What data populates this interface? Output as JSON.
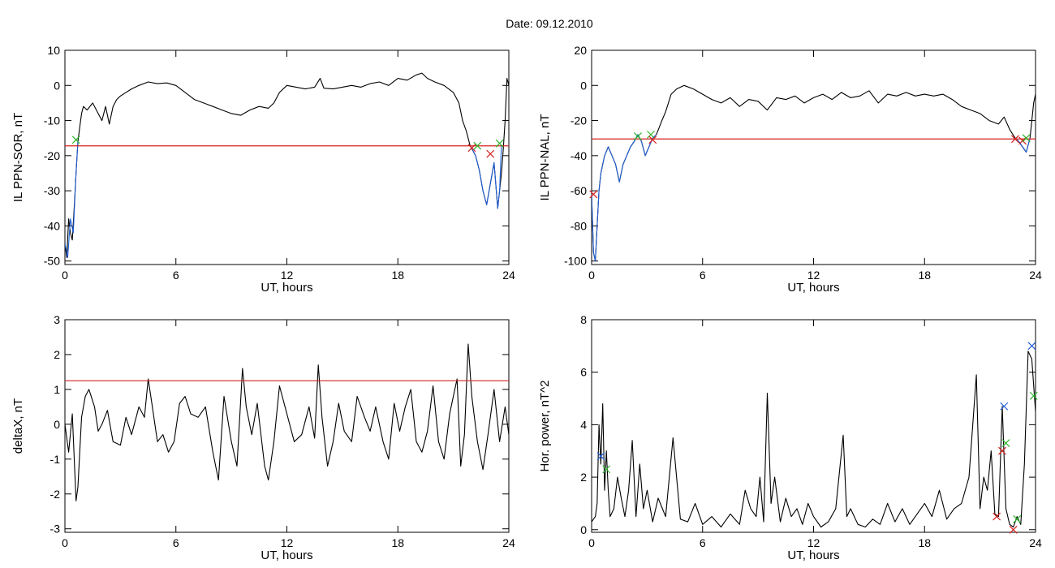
{
  "header": {
    "date_label": "Date:  09.12.2010"
  },
  "chart_data": [
    {
      "type": "line",
      "ylabel": "IL PPN-SOR, nT",
      "xlabel": "UT, hours",
      "xlim": [
        0,
        24
      ],
      "ylim": [
        -51,
        10
      ],
      "xticks": [
        "0",
        "6",
        "12",
        "18",
        "24"
      ],
      "yticks": [
        "10",
        "0",
        "-10",
        "-20",
        "-30",
        "-40",
        "-50"
      ],
      "threshold": -17.2,
      "series": [
        {
          "color": "#000000",
          "x": [
            0,
            0.1,
            0.2,
            0.3,
            0.4,
            0.5,
            0.6,
            0.7,
            0.8,
            0.9,
            1.0,
            1.2,
            1.5,
            1.8,
            2.0,
            2.2,
            2.4,
            2.6,
            2.8,
            3.0,
            3.3,
            3.6,
            4.0,
            4.5,
            5.0,
            5.5,
            6.0,
            6.5,
            7.0,
            7.5,
            8.0,
            8.5,
            9.0,
            9.5,
            10.0,
            10.5,
            11.0,
            11.3,
            11.6,
            12.0,
            12.5,
            13.0,
            13.5,
            13.8,
            14.0,
            14.5,
            15.0,
            15.5,
            16.0,
            16.5,
            17.0,
            17.5,
            18.0,
            18.5,
            19.0,
            19.3,
            19.6,
            20.0,
            20.5,
            21.0,
            21.3,
            21.5,
            21.7,
            21.9,
            22.0,
            22.2,
            22.4,
            22.6,
            22.8,
            23.0,
            23.2,
            23.4,
            23.5,
            23.6,
            23.7,
            23.8,
            23.9,
            24.0
          ],
          "values": [
            -45,
            -49,
            -38,
            -42,
            -44,
            -35,
            -25,
            -16,
            -12,
            -8,
            -6,
            -7,
            -5,
            -8,
            -10,
            -6,
            -11,
            -6,
            -4,
            -3,
            -2,
            -1,
            0,
            1,
            0.5,
            0.7,
            0,
            -2,
            -4,
            -5,
            -6,
            -7,
            -8,
            -8.5,
            -7,
            -6,
            -6.5,
            -5,
            -2,
            0,
            -0.5,
            -1,
            -0.5,
            2,
            -0.8,
            -1,
            -0.5,
            0,
            -0.5,
            0.5,
            1,
            0,
            2,
            1.5,
            3,
            3.5,
            2,
            1,
            0,
            -2,
            -5,
            -10,
            -13,
            -17,
            -18,
            -20,
            -24,
            -30,
            -34,
            -28,
            -22,
            -35,
            -30,
            -25,
            -18,
            -10,
            2,
            0
          ]
        },
        {
          "color": "#1f5fd6",
          "x": [
            0,
            0.15,
            0.3,
            0.45,
            0.6,
            0.7
          ],
          "values": [
            -45,
            -49,
            -38,
            -42,
            -25,
            -16
          ]
        },
        {
          "color": "#1f5fd6",
          "x": [
            21.9,
            22.0,
            22.2,
            22.4,
            22.6,
            22.8,
            23.0,
            23.2,
            23.4,
            23.5,
            23.6
          ],
          "values": [
            -17,
            -18,
            -20,
            -24,
            -30,
            -34,
            -28,
            -22,
            -35,
            -30,
            -17
          ]
        }
      ],
      "markers": [
        {
          "x": 0.6,
          "y": -15.5,
          "color": "#2db52d"
        },
        {
          "x": 22.0,
          "y": -17.8,
          "color": "#d62020"
        },
        {
          "x": 22.3,
          "y": -17.2,
          "color": "#2db52d"
        },
        {
          "x": 23.0,
          "y": -19.5,
          "color": "#d62020"
        },
        {
          "x": 23.5,
          "y": -16.5,
          "color": "#2db52d"
        }
      ]
    },
    {
      "type": "line",
      "ylabel": "IL PPN-NAL, nT",
      "xlabel": "UT, hours",
      "xlim": [
        0,
        24
      ],
      "ylim": [
        -102,
        20
      ],
      "xticks": [
        "0",
        "6",
        "12",
        "18",
        "24"
      ],
      "yticks": [
        "20",
        "0",
        "-20",
        "-40",
        "-60",
        "-80",
        "-100"
      ],
      "threshold": -30.5,
      "series": [
        {
          "color": "#000000",
          "x": [
            0,
            0.1,
            0.2,
            0.3,
            0.4,
            0.5,
            0.7,
            0.9,
            1.1,
            1.3,
            1.5,
            1.7,
            1.9,
            2.1,
            2.3,
            2.5,
            2.7,
            2.9,
            3.1,
            3.3,
            3.5,
            3.8,
            4.0,
            4.3,
            4.6,
            5.0,
            5.5,
            6.0,
            6.5,
            7.0,
            7.5,
            8.0,
            8.5,
            9.0,
            9.5,
            10.0,
            10.5,
            11.0,
            11.5,
            12.0,
            12.5,
            13.0,
            13.5,
            14.0,
            14.5,
            15.0,
            15.5,
            16.0,
            16.5,
            17.0,
            17.5,
            18.0,
            18.5,
            19.0,
            19.5,
            20.0,
            20.5,
            21.0,
            21.5,
            22.0,
            22.3,
            22.6,
            22.9,
            23.1,
            23.3,
            23.5,
            23.7,
            23.9,
            24.0
          ],
          "values": [
            -62,
            -95,
            -100,
            -80,
            -60,
            -50,
            -40,
            -35,
            -40,
            -45,
            -55,
            -45,
            -40,
            -35,
            -32,
            -28,
            -32,
            -40,
            -35,
            -30,
            -28,
            -20,
            -15,
            -5,
            -2,
            0,
            -2,
            -5,
            -8,
            -10,
            -7,
            -12,
            -8,
            -9,
            -14,
            -7,
            -8,
            -6,
            -10,
            -7,
            -5,
            -8,
            -4,
            -7,
            -6,
            -3,
            -10,
            -5,
            -6,
            -4,
            -6,
            -5,
            -6,
            -5,
            -8,
            -12,
            -14,
            -16,
            -20,
            -22,
            -18,
            -25,
            -30,
            -32,
            -35,
            -38,
            -30,
            -10,
            -5
          ]
        },
        {
          "color": "#1f5fd6",
          "x": [
            0,
            0.1,
            0.2,
            0.3,
            0.4,
            0.5,
            0.7,
            0.9,
            1.1,
            1.3,
            1.5,
            1.7,
            1.9,
            2.1,
            2.3,
            2.5,
            2.7,
            2.9,
            3.1,
            3.3,
            3.5
          ],
          "values": [
            -62,
            -95,
            -100,
            -80,
            -60,
            -50,
            -40,
            -35,
            -40,
            -45,
            -55,
            -45,
            -40,
            -35,
            -32,
            -28,
            -32,
            -40,
            -35,
            -30,
            -28
          ]
        },
        {
          "color": "#1f5fd6",
          "x": [
            22.9,
            23.1,
            23.3,
            23.5,
            23.7
          ],
          "values": [
            -30,
            -32,
            -35,
            -38,
            -30
          ]
        }
      ],
      "markers": [
        {
          "x": 0.1,
          "y": -62,
          "color": "#d62020"
        },
        {
          "x": 2.5,
          "y": -29,
          "color": "#2db52d"
        },
        {
          "x": 3.2,
          "y": -28,
          "color": "#2db52d"
        },
        {
          "x": 3.3,
          "y": -31,
          "color": "#d62020"
        },
        {
          "x": 22.9,
          "y": -30.5,
          "color": "#d62020"
        },
        {
          "x": 23.3,
          "y": -31.5,
          "color": "#d62020"
        },
        {
          "x": 23.5,
          "y": -30,
          "color": "#2db52d"
        }
      ]
    },
    {
      "type": "line",
      "ylabel": "deltaX, nT",
      "xlabel": "UT, hours",
      "xlim": [
        0,
        24
      ],
      "ylim": [
        -3.1,
        3
      ],
      "xticks": [
        "0",
        "6",
        "12",
        "18",
        "24"
      ],
      "yticks": [
        "3",
        "2",
        "1",
        "0",
        "-1",
        "-2",
        "-3"
      ],
      "threshold": 1.25,
      "series": [
        {
          "color": "#000000",
          "x": [
            0,
            0.2,
            0.4,
            0.6,
            0.7,
            0.9,
            1.1,
            1.3,
            1.6,
            1.8,
            2.0,
            2.3,
            2.6,
            3.0,
            3.3,
            3.6,
            4.0,
            4.3,
            4.5,
            4.7,
            5.0,
            5.3,
            5.6,
            5.9,
            6.2,
            6.5,
            6.8,
            7.2,
            7.6,
            8.0,
            8.3,
            8.6,
            9.0,
            9.3,
            9.6,
            9.8,
            10.1,
            10.4,
            10.8,
            11.0,
            11.3,
            11.6,
            12.0,
            12.4,
            12.8,
            13.2,
            13.5,
            13.7,
            13.9,
            14.2,
            14.5,
            14.8,
            15.1,
            15.5,
            15.8,
            16.2,
            16.5,
            16.8,
            17.2,
            17.5,
            17.8,
            18.1,
            18.4,
            18.7,
            19.0,
            19.3,
            19.6,
            19.9,
            20.2,
            20.5,
            20.8,
            21.0,
            21.2,
            21.4,
            21.6,
            21.8,
            22.0,
            22.3,
            22.6,
            22.9,
            23.2,
            23.5,
            23.8,
            24.0
          ],
          "values": [
            0,
            -0.8,
            0.3,
            -2.2,
            -1.8,
            0.2,
            0.8,
            1.0,
            0.5,
            -0.2,
            0,
            0.4,
            -0.5,
            -0.6,
            0.2,
            -0.3,
            0.5,
            0.2,
            1.3,
            0.6,
            -0.5,
            -0.3,
            -0.8,
            -0.5,
            0.6,
            0.8,
            0.3,
            0.2,
            0.5,
            -0.8,
            -1.6,
            0.8,
            -0.5,
            -1.2,
            1.6,
            0.5,
            -0.3,
            0.6,
            -1.2,
            -1.6,
            -0.5,
            1.1,
            0.3,
            -0.5,
            -0.3,
            0.5,
            -0.4,
            1.7,
            0.2,
            -1.2,
            -0.5,
            0.6,
            -0.2,
            -0.5,
            0.8,
            0.2,
            -0.2,
            0.5,
            -0.5,
            -1.0,
            0.6,
            -0.2,
            0.5,
            1.0,
            -0.5,
            -0.8,
            -0.2,
            1.1,
            -0.5,
            -1.0,
            0.3,
            0.8,
            1.3,
            -1.2,
            -0.3,
            2.3,
            0.8,
            -0.5,
            -1.3,
            -0.2,
            1.0,
            -0.5,
            0.5,
            -0.3
          ]
        }
      ],
      "markers": []
    },
    {
      "type": "line",
      "ylabel": "Hor. power, nT^2",
      "xlabel": "UT, hours",
      "xlim": [
        0,
        24
      ],
      "ylim": [
        -0.1,
        8
      ],
      "xticks": [
        "0",
        "6",
        "12",
        "18",
        "24"
      ],
      "yticks": [
        "8",
        "6",
        "4",
        "2",
        "0"
      ],
      "series": [
        {
          "color": "#000000",
          "x": [
            0,
            0.2,
            0.3,
            0.4,
            0.5,
            0.6,
            0.7,
            0.8,
            0.9,
            1.0,
            1.2,
            1.4,
            1.6,
            1.8,
            2.0,
            2.2,
            2.4,
            2.6,
            2.8,
            3.0,
            3.3,
            3.6,
            4.0,
            4.4,
            4.8,
            5.2,
            5.6,
            6.0,
            6.5,
            7.0,
            7.5,
            8.0,
            8.3,
            8.6,
            8.9,
            9.1,
            9.3,
            9.5,
            9.7,
            9.9,
            10.2,
            10.5,
            10.8,
            11.1,
            11.4,
            11.7,
            12.0,
            12.4,
            12.8,
            13.2,
            13.6,
            13.8,
            14.0,
            14.4,
            14.8,
            15.2,
            15.6,
            16.0,
            16.4,
            16.8,
            17.2,
            17.6,
            18.0,
            18.4,
            18.8,
            19.2,
            19.6,
            20.0,
            20.4,
            20.8,
            21.0,
            21.2,
            21.4,
            21.6,
            21.8,
            22.0,
            22.2,
            22.4,
            22.6,
            22.8,
            23.0,
            23.2,
            23.4,
            23.6,
            23.8,
            24.0
          ],
          "values": [
            0.3,
            0.5,
            1.0,
            4.0,
            2.5,
            4.8,
            1.5,
            3.0,
            1.5,
            0.5,
            0.8,
            2.0,
            1.2,
            0.5,
            1.5,
            3.4,
            0.5,
            2.5,
            0.8,
            1.5,
            0.3,
            1.2,
            0.5,
            3.5,
            0.4,
            0.3,
            1.0,
            0.2,
            0.5,
            0.1,
            0.6,
            0.2,
            1.5,
            0.8,
            0.5,
            2.0,
            0.3,
            5.2,
            1.0,
            2.0,
            0.3,
            1.2,
            0.5,
            0.8,
            0.2,
            1.0,
            0.5,
            0.1,
            0.3,
            0.8,
            3.6,
            0.5,
            0.8,
            0.2,
            0.1,
            0.4,
            0.2,
            1.0,
            0.3,
            0.8,
            0.2,
            0.6,
            1.0,
            0.5,
            1.5,
            0.4,
            0.8,
            1.0,
            2.0,
            5.9,
            0.8,
            2.0,
            1.5,
            3.0,
            0.6,
            0.5,
            4.7,
            0.8,
            0.2,
            0.1,
            0.5,
            0.2,
            2.5,
            6.8,
            6.5,
            4.5
          ]
        }
      ],
      "markers": [
        {
          "x": 0.5,
          "y": 2.8,
          "color": "#1f5fd6"
        },
        {
          "x": 0.8,
          "y": 2.3,
          "color": "#2db52d"
        },
        {
          "x": 21.9,
          "y": 0.5,
          "color": "#d62020"
        },
        {
          "x": 22.2,
          "y": 3.0,
          "color": "#d62020"
        },
        {
          "x": 22.3,
          "y": 4.7,
          "color": "#1f5fd6"
        },
        {
          "x": 22.4,
          "y": 3.3,
          "color": "#2db52d"
        },
        {
          "x": 22.8,
          "y": 0.0,
          "color": "#d62020"
        },
        {
          "x": 23.0,
          "y": 0.4,
          "color": "#2db52d"
        },
        {
          "x": 23.8,
          "y": 7.0,
          "color": "#1f5fd6"
        },
        {
          "x": 23.9,
          "y": 5.1,
          "color": "#2db52d"
        }
      ]
    }
  ]
}
